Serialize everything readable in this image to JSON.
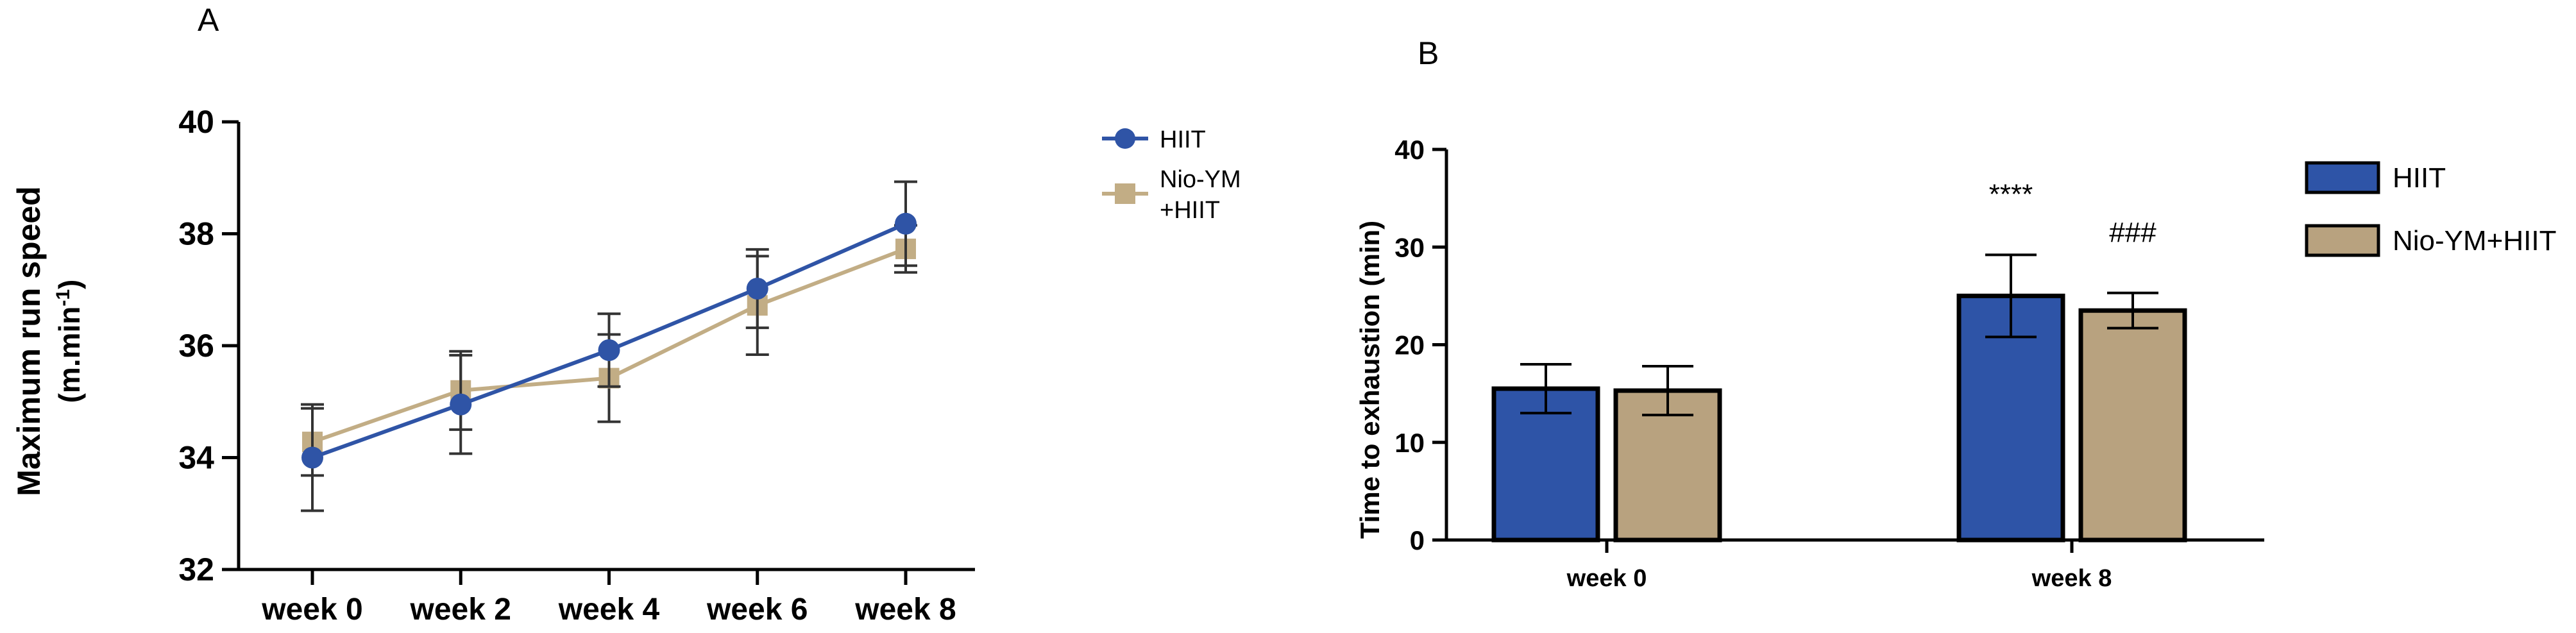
{
  "chart_data": [
    {
      "panel": "A",
      "type": "line",
      "title": "",
      "xlabel": "",
      "ylabel": "Maximum run speed",
      "ylabel_line2_prefix": "(m.min",
      "ylabel_line2_sup": "-1",
      "ylabel_line2_suffix": ")",
      "categories": [
        "week 0",
        "week 2",
        "week 4",
        "week 6",
        "week 8"
      ],
      "ylim": [
        32,
        40
      ],
      "yticks": [
        "32",
        "34",
        "36",
        "38",
        "40"
      ],
      "series": [
        {
          "name": "HIIT",
          "values": [
            34.0,
            34.95,
            35.92,
            37.02,
            38.18
          ],
          "error": [
            0.95,
            0.88,
            0.65,
            0.7,
            0.75
          ],
          "color": "#2f54a6",
          "marker": "circle"
        },
        {
          "name": "Nio-YM\n+HIIT",
          "name_line1": "Nio-YM",
          "name_line2": "+HIIT",
          "values": [
            34.28,
            35.2,
            35.42,
            36.72,
            37.73
          ],
          "error": [
            0.6,
            0.7,
            0.78,
            0.88,
            0.42
          ],
          "color": "#c2ad85",
          "marker": "square"
        }
      ],
      "legend_position": "right"
    },
    {
      "panel": "B",
      "type": "bar",
      "title": "",
      "xlabel": "",
      "ylabel": "Time to exhaustion (min)",
      "categories": [
        "week 0",
        "week 8"
      ],
      "ylim": [
        0,
        40
      ],
      "yticks": [
        "0",
        "10",
        "20",
        "30",
        "40"
      ],
      "series": [
        {
          "name": "HIIT",
          "values": [
            15.5,
            25.0
          ],
          "error": [
            2.5,
            4.2
          ],
          "color": "#2e54a7"
        },
        {
          "name": "Nio-YM+HIIT",
          "values": [
            15.3,
            23.5
          ],
          "error": [
            2.5,
            1.8
          ],
          "color": "#b8a27f"
        }
      ],
      "annotations": [
        {
          "text": "****",
          "category": "week 8",
          "series": 0
        },
        {
          "text": "###",
          "category": "week 8",
          "series": 1
        }
      ],
      "legend_position": "right"
    }
  ]
}
